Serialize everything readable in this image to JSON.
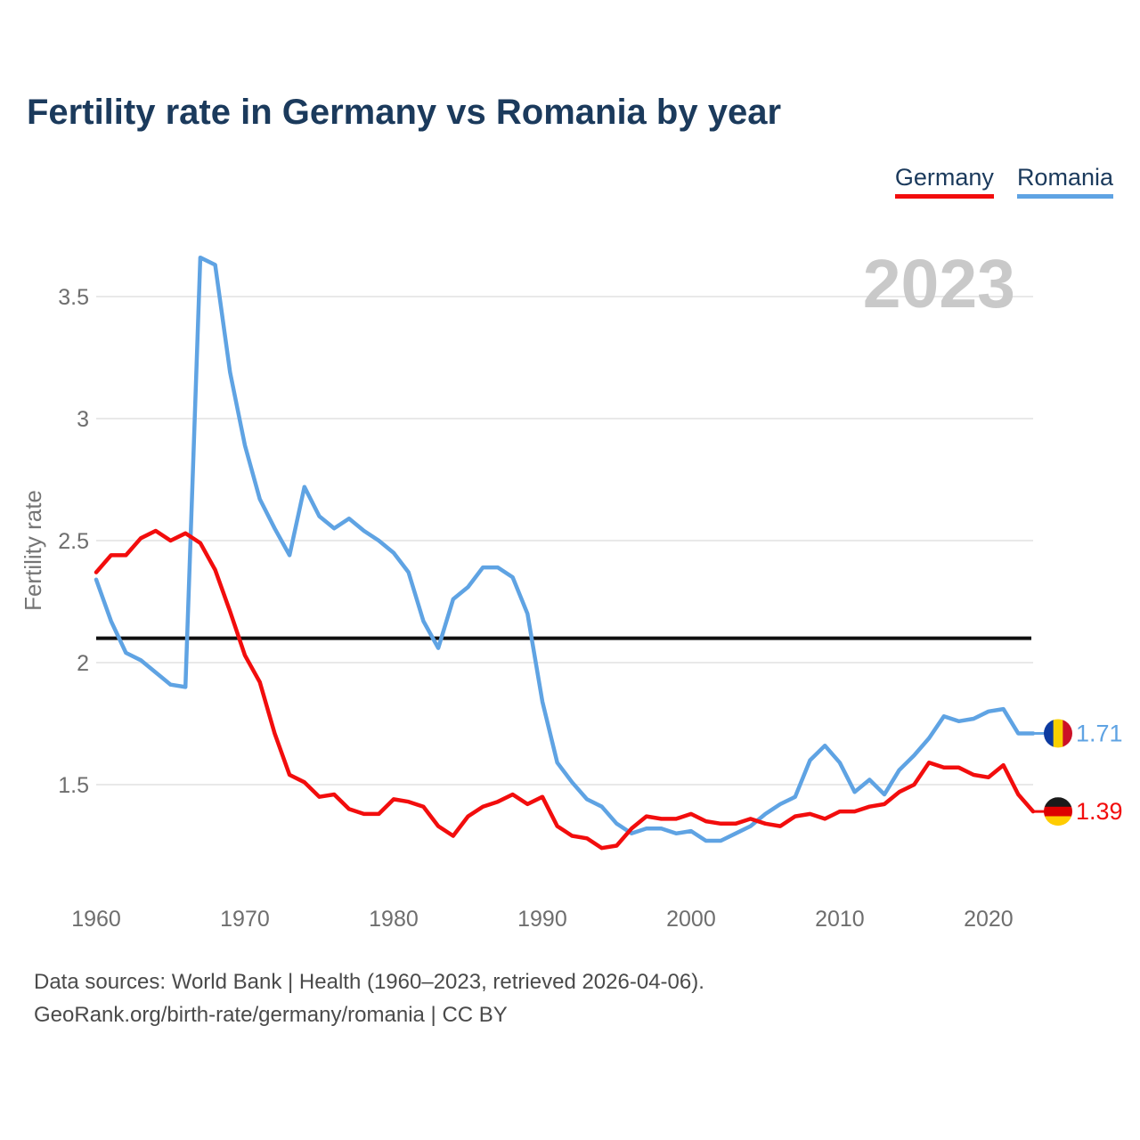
{
  "footer": {
    "line1": "Data sources: World Bank | Health (1960–2023, retrieved 2026-04-06).",
    "line2": "GeoRank.org/birth-rate/germany/romania | CC BY"
  },
  "chart_data": {
    "type": "line",
    "title": "Fertility rate in Germany vs Romania by year",
    "xlabel": "",
    "ylabel": "Fertility rate",
    "watermark": "2023",
    "grid": "horizontal",
    "legend_position": "top-right",
    "x_range": [
      1960,
      2023
    ],
    "y_range": [
      1.15,
      3.72
    ],
    "x_ticks": [
      {
        "value": 1960,
        "label": "1960"
      },
      {
        "value": 1970,
        "label": "1970"
      },
      {
        "value": 1980,
        "label": "1980"
      },
      {
        "value": 1990,
        "label": "1990"
      },
      {
        "value": 2000,
        "label": "2000"
      },
      {
        "value": 2010,
        "label": "2010"
      },
      {
        "value": 2020,
        "label": "2020"
      }
    ],
    "y_ticks": [
      {
        "value": 1.5,
        "label": "1.5"
      },
      {
        "value": 2,
        "label": "2"
      },
      {
        "value": 2.5,
        "label": "2.5"
      },
      {
        "value": 3,
        "label": "3"
      },
      {
        "value": 3.5,
        "label": "3.5"
      }
    ],
    "reference_line": {
      "value": 2.1,
      "color": "#0f0f0f"
    },
    "years": [
      1960,
      1961,
      1962,
      1963,
      1964,
      1965,
      1966,
      1967,
      1968,
      1969,
      1970,
      1971,
      1972,
      1973,
      1974,
      1975,
      1976,
      1977,
      1978,
      1979,
      1980,
      1981,
      1982,
      1983,
      1984,
      1985,
      1986,
      1987,
      1988,
      1989,
      1990,
      1991,
      1992,
      1993,
      1994,
      1995,
      1996,
      1997,
      1998,
      1999,
      2000,
      2001,
      2002,
      2003,
      2004,
      2005,
      2006,
      2007,
      2008,
      2009,
      2010,
      2011,
      2012,
      2013,
      2014,
      2015,
      2016,
      2017,
      2018,
      2019,
      2020,
      2021,
      2022,
      2023
    ],
    "series": [
      {
        "name": "Germany",
        "color": "#f20d0d",
        "end_label": "1.39",
        "flag": {
          "orientation": "horizontal",
          "colors": [
            "#1a1a1a",
            "#dd0000",
            "#ffcc00"
          ]
        },
        "values": [
          2.37,
          2.44,
          2.44,
          2.51,
          2.54,
          2.5,
          2.53,
          2.49,
          2.38,
          2.21,
          2.03,
          1.92,
          1.71,
          1.54,
          1.51,
          1.45,
          1.46,
          1.4,
          1.38,
          1.38,
          1.44,
          1.43,
          1.41,
          1.33,
          1.29,
          1.37,
          1.41,
          1.43,
          1.46,
          1.42,
          1.45,
          1.33,
          1.29,
          1.28,
          1.24,
          1.25,
          1.32,
          1.37,
          1.36,
          1.36,
          1.38,
          1.35,
          1.34,
          1.34,
          1.36,
          1.34,
          1.33,
          1.37,
          1.38,
          1.36,
          1.39,
          1.39,
          1.41,
          1.42,
          1.47,
          1.5,
          1.59,
          1.57,
          1.57,
          1.54,
          1.53,
          1.58,
          1.46,
          1.39
        ]
      },
      {
        "name": "Romania",
        "color": "#5fa3e3",
        "end_label": "1.71",
        "flag": {
          "orientation": "vertical",
          "colors": [
            "#0c3aa0",
            "#f8d000",
            "#cc1126"
          ]
        },
        "values": [
          2.34,
          2.17,
          2.04,
          2.01,
          1.96,
          1.91,
          1.9,
          3.66,
          3.63,
          3.19,
          2.89,
          2.67,
          2.55,
          2.44,
          2.72,
          2.6,
          2.55,
          2.59,
          2.54,
          2.5,
          2.45,
          2.37,
          2.17,
          2.06,
          2.26,
          2.31,
          2.39,
          2.39,
          2.35,
          2.2,
          1.84,
          1.59,
          1.51,
          1.44,
          1.41,
          1.34,
          1.3,
          1.32,
          1.32,
          1.3,
          1.31,
          1.27,
          1.27,
          1.3,
          1.33,
          1.38,
          1.42,
          1.45,
          1.6,
          1.66,
          1.59,
          1.47,
          1.52,
          1.46,
          1.56,
          1.62,
          1.69,
          1.78,
          1.76,
          1.77,
          1.8,
          1.81,
          1.71,
          1.71
        ]
      }
    ]
  }
}
